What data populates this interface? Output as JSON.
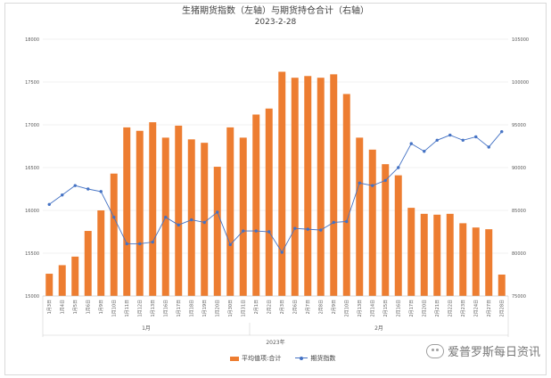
{
  "chart_data": {
    "type": "bar+line",
    "title": "生猪期货指数（左轴）与期货持仓合计（右轴）",
    "subtitle": "2023-2-28",
    "categories": [
      "1月3日",
      "1月4日",
      "1月5日",
      "1月6日",
      "1月9日",
      "1月10日",
      "1月11日",
      "1月12日",
      "1月13日",
      "1月16日",
      "1月17日",
      "1月18日",
      "1月19日",
      "1月20日",
      "1月30日",
      "1月31日",
      "2月1日",
      "2月2日",
      "2月3日",
      "2月6日",
      "2月7日",
      "2月8日",
      "2月9日",
      "2月10日",
      "2月13日",
      "2月14日",
      "2月15日",
      "2月16日",
      "2月17日",
      "2月20日",
      "2月21日",
      "2月22日",
      "2月23日",
      "2月24日",
      "2月27日",
      "2月28日"
    ],
    "series": [
      {
        "name": "平均值项:合计",
        "type": "bar",
        "axis": "right",
        "color": "#ED7D31",
        "values": [
          77600,
          78600,
          79600,
          82600,
          85000,
          89300,
          94700,
          94300,
          95300,
          93500,
          94900,
          93300,
          92900,
          90100,
          94700,
          93500,
          96200,
          96900,
          101200,
          100500,
          100700,
          100500,
          100900,
          98600,
          93500,
          92100,
          90400,
          89100,
          85300,
          84600,
          84500,
          84600,
          83500,
          83000,
          82800,
          77500
        ]
      },
      {
        "name": "期货指数",
        "type": "line",
        "axis": "left",
        "color": "#4472C4",
        "values": [
          16070,
          16180,
          16290,
          16250,
          16220,
          15920,
          15610,
          15610,
          15630,
          15920,
          15830,
          15890,
          15860,
          15980,
          15600,
          15760,
          15760,
          15750,
          15510,
          15790,
          15780,
          15770,
          15860,
          15870,
          16320,
          16290,
          16350,
          16500,
          16780,
          16690,
          16820,
          16880,
          16820,
          16860,
          16740,
          16920
        ]
      }
    ],
    "y_left": {
      "min": 15000,
      "max": 18000,
      "step": 500,
      "ticks": [
        "15000",
        "15500",
        "16000",
        "16500",
        "17000",
        "17500",
        "18000"
      ]
    },
    "y_right": {
      "min": 75000,
      "max": 105000,
      "step": 5000,
      "ticks": [
        "75000",
        "80000",
        "85000",
        "90000",
        "95000",
        "100000",
        "105000"
      ]
    },
    "x_groups": [
      {
        "label": "1月",
        "from": 0,
        "to": 15
      },
      {
        "label": "2月",
        "from": 16,
        "to": 35
      }
    ],
    "x_group_top": "2023年",
    "grid": true,
    "legend_position": "bottom"
  },
  "watermark": {
    "text": "爱普罗斯每日资讯",
    "icon": "wechat-icon"
  }
}
